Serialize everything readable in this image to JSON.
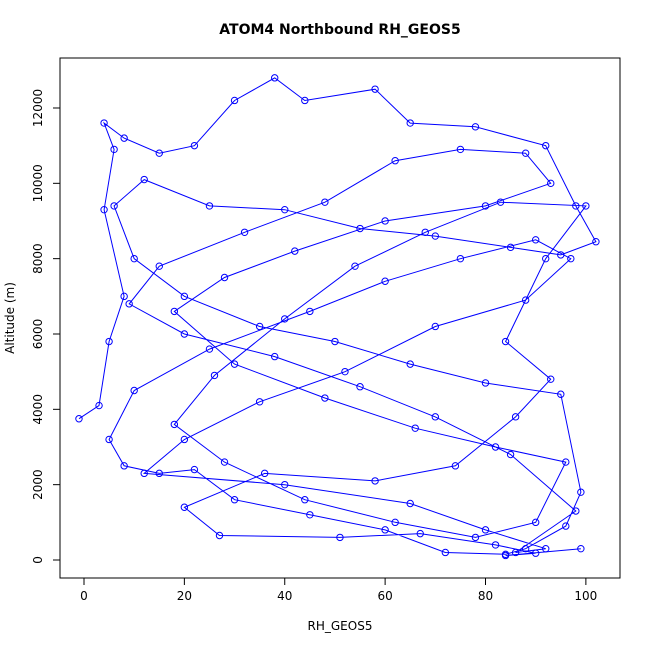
{
  "chart_data": {
    "type": "line",
    "title": "ATOM4 Northbound RH_GEOS5",
    "x_label": "RH_GEOS5",
    "y_label": "Altitude (m)",
    "color": "#0000ff",
    "markers": true,
    "x": [
      -1,
      3,
      5,
      8,
      4,
      6,
      4,
      8,
      15,
      22,
      30,
      38,
      44,
      58,
      65,
      78,
      92,
      98,
      102,
      95,
      85,
      70,
      55,
      40,
      25,
      12,
      6,
      10,
      20,
      35,
      50,
      65,
      80,
      95,
      99,
      96,
      88,
      84,
      72,
      60,
      45,
      30,
      22,
      15,
      8,
      5,
      10,
      25,
      45,
      60,
      75,
      90,
      97,
      88,
      70,
      52,
      35,
      20,
      12,
      40,
      65,
      80,
      92,
      86,
      98,
      85,
      70,
      55,
      38,
      20,
      9,
      15,
      32,
      48,
      62,
      75,
      88,
      93,
      80,
      60,
      42,
      28,
      18,
      30,
      48,
      66,
      82,
      96,
      90,
      78,
      62,
      44,
      28,
      18,
      26,
      40,
      54,
      68,
      83,
      100,
      92,
      84,
      93,
      86,
      74,
      58,
      36,
      20,
      27,
      51,
      67,
      82,
      90,
      84,
      99
    ],
    "values": [
      3750,
      4100,
      5800,
      7000,
      9300,
      10900,
      11600,
      11200,
      10800,
      11000,
      12200,
      12800,
      12200,
      12500,
      11600,
      11500,
      11000,
      9400,
      8450,
      8100,
      8300,
      8600,
      8800,
      9300,
      9400,
      10100,
      9400,
      8000,
      7000,
      6200,
      5800,
      5200,
      4700,
      4400,
      1800,
      900,
      300,
      150,
      200,
      800,
      1200,
      1600,
      2400,
      2300,
      2500,
      3200,
      4500,
      5600,
      6600,
      7400,
      8000,
      8500,
      8000,
      6900,
      6200,
      5000,
      4200,
      3200,
      2300,
      2000,
      1500,
      800,
      300,
      200,
      1300,
      2800,
      3800,
      4600,
      5400,
      6000,
      6800,
      7800,
      8700,
      9500,
      10600,
      10900,
      10800,
      10000,
      9400,
      9000,
      8200,
      7500,
      6600,
      5200,
      4300,
      3500,
      3000,
      2600,
      1000,
      600,
      1000,
      1600,
      2600,
      3600,
      4900,
      6400,
      7800,
      8700,
      9500,
      9400,
      8000,
      5800,
      4800,
      3800,
      2500,
      2100,
      2300,
      1400,
      650,
      600,
      700,
      400,
      180,
      120,
      300
    ],
    "xlim": [
      -4.78,
      106.8
    ],
    "ylim": [
      -478,
      13327
    ],
    "xticks": [
      0,
      20,
      40,
      60,
      80,
      100
    ],
    "yticks": [
      0,
      2000,
      4000,
      6000,
      8000,
      10000,
      12000
    ]
  }
}
